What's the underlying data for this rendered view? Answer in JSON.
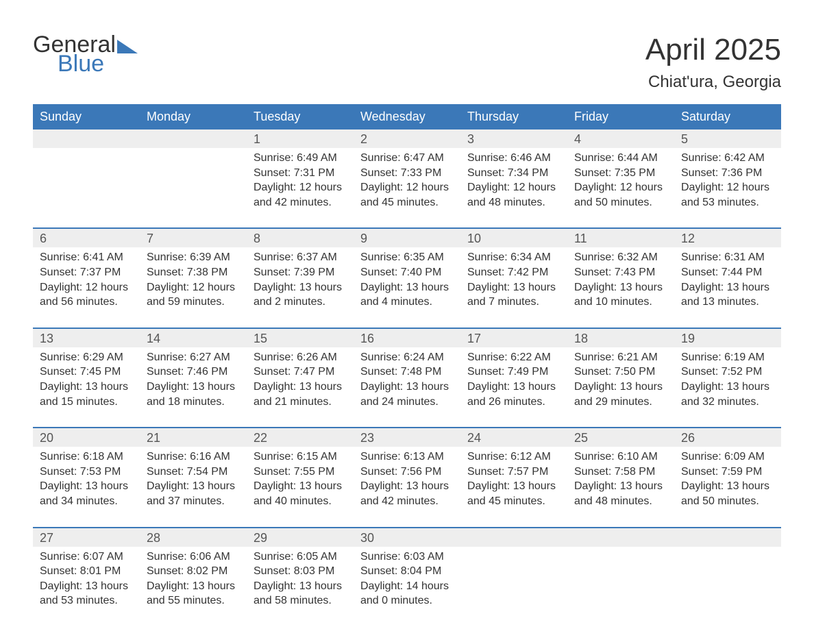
{
  "logo": {
    "line1": "General",
    "line2": "Blue"
  },
  "title": "April 2025",
  "location": "Chiat'ura, Georgia",
  "colors": {
    "header_bg": "#3b78b8",
    "header_text": "#ffffff",
    "daynum_bg": "#eeeeee",
    "week_border": "#3b78b8",
    "body_text": "#333333",
    "logo_accent": "#3b78b8"
  },
  "day_names": [
    "Sunday",
    "Monday",
    "Tuesday",
    "Wednesday",
    "Thursday",
    "Friday",
    "Saturday"
  ],
  "weeks": [
    [
      {
        "num": "",
        "lines": []
      },
      {
        "num": "",
        "lines": []
      },
      {
        "num": "1",
        "lines": [
          "Sunrise: 6:49 AM",
          "Sunset: 7:31 PM",
          "Daylight: 12 hours and 42 minutes."
        ]
      },
      {
        "num": "2",
        "lines": [
          "Sunrise: 6:47 AM",
          "Sunset: 7:33 PM",
          "Daylight: 12 hours and 45 minutes."
        ]
      },
      {
        "num": "3",
        "lines": [
          "Sunrise: 6:46 AM",
          "Sunset: 7:34 PM",
          "Daylight: 12 hours and 48 minutes."
        ]
      },
      {
        "num": "4",
        "lines": [
          "Sunrise: 6:44 AM",
          "Sunset: 7:35 PM",
          "Daylight: 12 hours and 50 minutes."
        ]
      },
      {
        "num": "5",
        "lines": [
          "Sunrise: 6:42 AM",
          "Sunset: 7:36 PM",
          "Daylight: 12 hours and 53 minutes."
        ]
      }
    ],
    [
      {
        "num": "6",
        "lines": [
          "Sunrise: 6:41 AM",
          "Sunset: 7:37 PM",
          "Daylight: 12 hours and 56 minutes."
        ]
      },
      {
        "num": "7",
        "lines": [
          "Sunrise: 6:39 AM",
          "Sunset: 7:38 PM",
          "Daylight: 12 hours and 59 minutes."
        ]
      },
      {
        "num": "8",
        "lines": [
          "Sunrise: 6:37 AM",
          "Sunset: 7:39 PM",
          "Daylight: 13 hours and 2 minutes."
        ]
      },
      {
        "num": "9",
        "lines": [
          "Sunrise: 6:35 AM",
          "Sunset: 7:40 PM",
          "Daylight: 13 hours and 4 minutes."
        ]
      },
      {
        "num": "10",
        "lines": [
          "Sunrise: 6:34 AM",
          "Sunset: 7:42 PM",
          "Daylight: 13 hours and 7 minutes."
        ]
      },
      {
        "num": "11",
        "lines": [
          "Sunrise: 6:32 AM",
          "Sunset: 7:43 PM",
          "Daylight: 13 hours and 10 minutes."
        ]
      },
      {
        "num": "12",
        "lines": [
          "Sunrise: 6:31 AM",
          "Sunset: 7:44 PM",
          "Daylight: 13 hours and 13 minutes."
        ]
      }
    ],
    [
      {
        "num": "13",
        "lines": [
          "Sunrise: 6:29 AM",
          "Sunset: 7:45 PM",
          "Daylight: 13 hours and 15 minutes."
        ]
      },
      {
        "num": "14",
        "lines": [
          "Sunrise: 6:27 AM",
          "Sunset: 7:46 PM",
          "Daylight: 13 hours and 18 minutes."
        ]
      },
      {
        "num": "15",
        "lines": [
          "Sunrise: 6:26 AM",
          "Sunset: 7:47 PM",
          "Daylight: 13 hours and 21 minutes."
        ]
      },
      {
        "num": "16",
        "lines": [
          "Sunrise: 6:24 AM",
          "Sunset: 7:48 PM",
          "Daylight: 13 hours and 24 minutes."
        ]
      },
      {
        "num": "17",
        "lines": [
          "Sunrise: 6:22 AM",
          "Sunset: 7:49 PM",
          "Daylight: 13 hours and 26 minutes."
        ]
      },
      {
        "num": "18",
        "lines": [
          "Sunrise: 6:21 AM",
          "Sunset: 7:50 PM",
          "Daylight: 13 hours and 29 minutes."
        ]
      },
      {
        "num": "19",
        "lines": [
          "Sunrise: 6:19 AM",
          "Sunset: 7:52 PM",
          "Daylight: 13 hours and 32 minutes."
        ]
      }
    ],
    [
      {
        "num": "20",
        "lines": [
          "Sunrise: 6:18 AM",
          "Sunset: 7:53 PM",
          "Daylight: 13 hours and 34 minutes."
        ]
      },
      {
        "num": "21",
        "lines": [
          "Sunrise: 6:16 AM",
          "Sunset: 7:54 PM",
          "Daylight: 13 hours and 37 minutes."
        ]
      },
      {
        "num": "22",
        "lines": [
          "Sunrise: 6:15 AM",
          "Sunset: 7:55 PM",
          "Daylight: 13 hours and 40 minutes."
        ]
      },
      {
        "num": "23",
        "lines": [
          "Sunrise: 6:13 AM",
          "Sunset: 7:56 PM",
          "Daylight: 13 hours and 42 minutes."
        ]
      },
      {
        "num": "24",
        "lines": [
          "Sunrise: 6:12 AM",
          "Sunset: 7:57 PM",
          "Daylight: 13 hours and 45 minutes."
        ]
      },
      {
        "num": "25",
        "lines": [
          "Sunrise: 6:10 AM",
          "Sunset: 7:58 PM",
          "Daylight: 13 hours and 48 minutes."
        ]
      },
      {
        "num": "26",
        "lines": [
          "Sunrise: 6:09 AM",
          "Sunset: 7:59 PM",
          "Daylight: 13 hours and 50 minutes."
        ]
      }
    ],
    [
      {
        "num": "27",
        "lines": [
          "Sunrise: 6:07 AM",
          "Sunset: 8:01 PM",
          "Daylight: 13 hours and 53 minutes."
        ]
      },
      {
        "num": "28",
        "lines": [
          "Sunrise: 6:06 AM",
          "Sunset: 8:02 PM",
          "Daylight: 13 hours and 55 minutes."
        ]
      },
      {
        "num": "29",
        "lines": [
          "Sunrise: 6:05 AM",
          "Sunset: 8:03 PM",
          "Daylight: 13 hours and 58 minutes."
        ]
      },
      {
        "num": "30",
        "lines": [
          "Sunrise: 6:03 AM",
          "Sunset: 8:04 PM",
          "Daylight: 14 hours and 0 minutes."
        ]
      },
      {
        "num": "",
        "lines": []
      },
      {
        "num": "",
        "lines": []
      },
      {
        "num": "",
        "lines": []
      }
    ]
  ]
}
